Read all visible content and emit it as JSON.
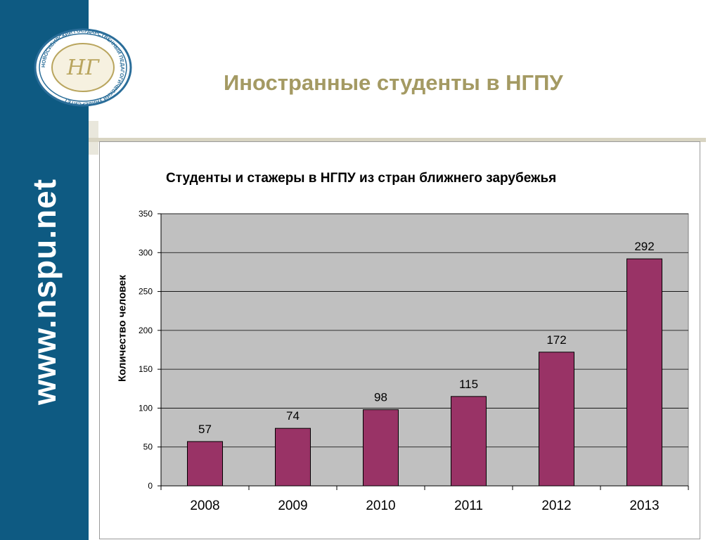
{
  "sidebar": {
    "url": "www.nspu.net"
  },
  "logo": {
    "ring_text": "НОВОСИБИРСКИЙ ГОСУДАРСТВЕННЫЙ ПЕДАГОГИЧЕСКИЙ УНИВЕРСИТЕТ",
    "monogram": "НГ"
  },
  "slide": {
    "title": "Иностранные студенты в НГПУ"
  },
  "colors": {
    "sidebar": "#0e5a82",
    "title": "#a49a63",
    "plot_bg": "#c0c0c0",
    "bar": "#993366"
  },
  "chart_data": {
    "type": "bar",
    "title": "Студенты и стажеры в НГПУ из стран ближнего зарубежья",
    "xlabel": "",
    "ylabel": "Количество человек",
    "categories": [
      "2008",
      "2009",
      "2010",
      "2011",
      "2012",
      "2013"
    ],
    "values": [
      57,
      74,
      98,
      115,
      172,
      292
    ],
    "ylim": [
      0,
      350
    ],
    "yticks": [
      0,
      50,
      100,
      150,
      200,
      250,
      300,
      350
    ],
    "grid": true,
    "legend": "none"
  }
}
